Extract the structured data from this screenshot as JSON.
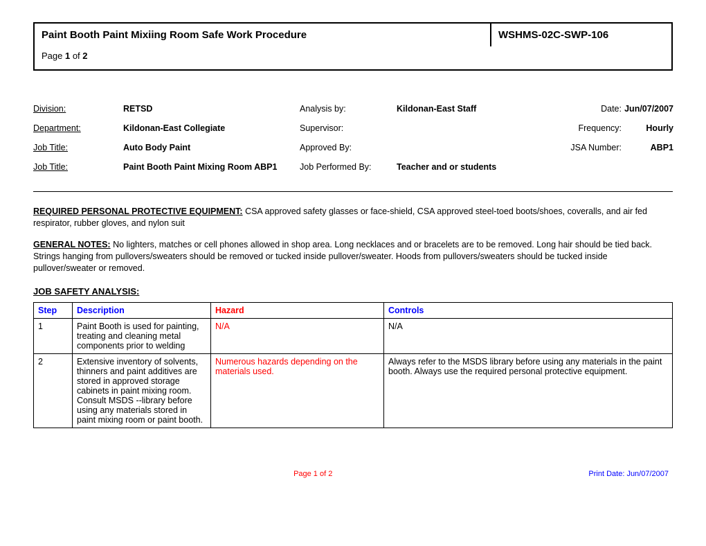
{
  "header": {
    "title": "Paint Booth Paint Mixiing Room Safe Work Procedure",
    "code": "WSHMS-02C-SWP-106",
    "page_prefix": "Page ",
    "page_current": "1",
    "page_of": " of ",
    "page_total": "2"
  },
  "meta": {
    "division_label": "Division:",
    "division_value": "RETSD",
    "analysis_label": "Analysis by:",
    "analysis_value": "Kildonan-East Staff",
    "date_label": "Date:",
    "date_value": "Jun/07/2007",
    "department_label": "Department:",
    "department_value": "Kildonan-East Collegiate",
    "supervisor_label": "Supervisor:",
    "supervisor_value": "",
    "frequency_label": "Frequency:",
    "frequency_value": "Hourly",
    "jobtitle1_label": "Job Title:",
    "jobtitle1_value": "Auto Body Paint",
    "approved_label": "Approved By:",
    "approved_value": "",
    "jsanum_label": "JSA Number:",
    "jsanum_value": "ABP1",
    "jobtitle2_label": "Job Title:",
    "jobtitle2_value": "Paint Booth Paint Mixing Room ABP1",
    "performed_label": "Job Performed By:",
    "performed_value": "Teacher and or students"
  },
  "ppe": {
    "title": "REQUIRED PERSONAL PROTECTIVE EQUIPMENT:",
    "text": "  CSA approved safety glasses or face-shield, CSA approved steel-toed boots/shoes, coveralls, and air fed respirator, rubber gloves, and nylon suit"
  },
  "notes": {
    "title": "GENERAL NOTES:",
    "text": "  No lighters, matches or cell phones allowed in shop area.  Long necklaces and or bracelets are to be removed.  Long hair should be tied back.  Strings hanging from pullovers/sweaters should be removed or tucked inside pullover/sweater.  Hoods from pullovers/sweaters should be tucked inside pullover/sweater or removed."
  },
  "jsa": {
    "title": "JOB SAFETY ANALYSIS:",
    "headers": {
      "step": "Step",
      "description": "Description",
      "hazard": "Hazard",
      "controls": "Controls"
    },
    "rows": [
      {
        "step": "1",
        "description": "Paint Booth is used for painting, treating and cleaning metal components prior to welding",
        "hazard": "N/A",
        "controls": "N/A"
      },
      {
        "step": "2",
        "description": "Extensive inventory of solvents, thinners and paint additives are stored in approved storage cabinets in paint mixing room.  Consult MSDS --library before using any materials stored in paint mixing room or paint booth.",
        "hazard": "Numerous hazards depending on the materials used.",
        "controls": "Always refer to the MSDS library before using any materials in the paint booth.  Always use the required personal protective equipment."
      }
    ]
  },
  "footer": {
    "page": "Page 1 of 2",
    "print": "Print Date: Jun/07/2007"
  }
}
